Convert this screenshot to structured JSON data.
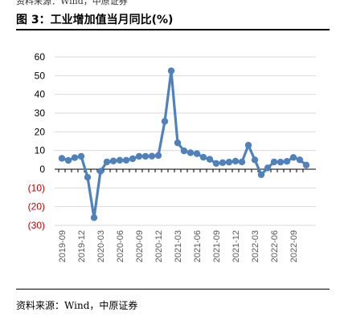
{
  "header": {
    "top_source": "资料来源：Wind，中原证券",
    "title": "图 3：工业增加值当月同比(%)"
  },
  "footer": {
    "source": "资料来源：Wind，中原证券"
  },
  "colors": {
    "series": "#4f81bd",
    "negative_tick": "#c00000",
    "grid": "#d9d9d9"
  },
  "chart_data": {
    "type": "line",
    "title": "工业增加值当月同比(%)",
    "xlabel": "",
    "ylabel": "",
    "ylim": [
      -30,
      60
    ],
    "grid": true,
    "legend": "none",
    "y_ticks": [
      {
        "value": 60,
        "label": "60"
      },
      {
        "value": 50,
        "label": "50"
      },
      {
        "value": 40,
        "label": "40"
      },
      {
        "value": 30,
        "label": "30"
      },
      {
        "value": 20,
        "label": "20"
      },
      {
        "value": 10,
        "label": "10"
      },
      {
        "value": 0,
        "label": "0"
      },
      {
        "value": -10,
        "label": "(10)"
      },
      {
        "value": -20,
        "label": "(20)"
      },
      {
        "value": -30,
        "label": "(30)"
      }
    ],
    "x_tick_labels": [
      "2019-09",
      "2019-12",
      "2020-03",
      "2020-06",
      "2020-09",
      "2020-12",
      "2021-03",
      "2021-06",
      "2021-09",
      "2021-12",
      "2022-03",
      "2022-06",
      "2022-09"
    ],
    "x": [
      "2019-09",
      "2019-10",
      "2019-11",
      "2019-12",
      "2020-01",
      "2020-02",
      "2020-03",
      "2020-04",
      "2020-05",
      "2020-06",
      "2020-07",
      "2020-08",
      "2020-09",
      "2020-10",
      "2020-11",
      "2020-12",
      "2021-01",
      "2021-02",
      "2021-03",
      "2021-04",
      "2021-05",
      "2021-06",
      "2021-07",
      "2021-08",
      "2021-09",
      "2021-10",
      "2021-11",
      "2021-12",
      "2022-01",
      "2022-02",
      "2022-03",
      "2022-04",
      "2022-05",
      "2022-06",
      "2022-07",
      "2022-08",
      "2022-09",
      "2022-10",
      "2022-11"
    ],
    "series": [
      {
        "name": "",
        "values": [
          5.8,
          4.7,
          6.2,
          6.9,
          -4.3,
          -25.9,
          -1.1,
          3.9,
          4.4,
          4.8,
          4.8,
          5.6,
          6.9,
          6.9,
          7.0,
          7.3,
          25.6,
          52.6,
          14.1,
          9.8,
          8.8,
          8.3,
          6.4,
          5.3,
          3.1,
          3.5,
          3.8,
          4.3,
          3.9,
          12.8,
          5.0,
          -2.9,
          0.7,
          3.9,
          3.8,
          4.2,
          6.3,
          5.0,
          2.2
        ]
      }
    ]
  }
}
